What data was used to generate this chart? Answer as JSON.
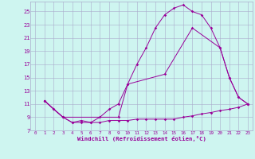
{
  "xlabel": "Windchill (Refroidissement éolien,°C)",
  "bg_color": "#cef5f0",
  "line_color": "#990099",
  "grid_color": "#aaaacc",
  "xlim": [
    -0.5,
    23.5
  ],
  "ylim": [
    7,
    26.5
  ],
  "yticks": [
    7,
    9,
    11,
    13,
    15,
    17,
    19,
    21,
    23,
    25
  ],
  "xticks": [
    0,
    1,
    2,
    3,
    4,
    5,
    6,
    7,
    8,
    9,
    10,
    11,
    12,
    13,
    14,
    15,
    16,
    17,
    18,
    19,
    20,
    21,
    22,
    23
  ],
  "line1_x": [
    1,
    2,
    3,
    4,
    5,
    6,
    7,
    8,
    9,
    10,
    11,
    12,
    13,
    14,
    15,
    16,
    17,
    18,
    19,
    20,
    21,
    22,
    23
  ],
  "line1_y": [
    11.5,
    10.2,
    9.0,
    8.2,
    8.5,
    8.2,
    9.0,
    10.2,
    11.0,
    14.0,
    17.0,
    19.5,
    22.5,
    24.5,
    25.5,
    26.0,
    25.0,
    24.5,
    22.5,
    19.5,
    15.0,
    12.0,
    11.0
  ],
  "line2_x": [
    1,
    3,
    9,
    10,
    14,
    17,
    20,
    21,
    22,
    23
  ],
  "line2_y": [
    11.5,
    9.0,
    9.0,
    14.0,
    15.5,
    22.5,
    19.5,
    15.0,
    12.0,
    11.0
  ],
  "line3_x": [
    1,
    2,
    3,
    4,
    5,
    6,
    7,
    8,
    9,
    10,
    11,
    12,
    13,
    14,
    15,
    16,
    17,
    18,
    19,
    20,
    21,
    22,
    23
  ],
  "line3_y": [
    11.5,
    10.2,
    9.0,
    8.2,
    8.2,
    8.2,
    8.2,
    8.5,
    8.5,
    8.5,
    8.7,
    8.7,
    8.7,
    8.7,
    8.7,
    9.0,
    9.2,
    9.5,
    9.7,
    10.0,
    10.2,
    10.5,
    11.0
  ]
}
